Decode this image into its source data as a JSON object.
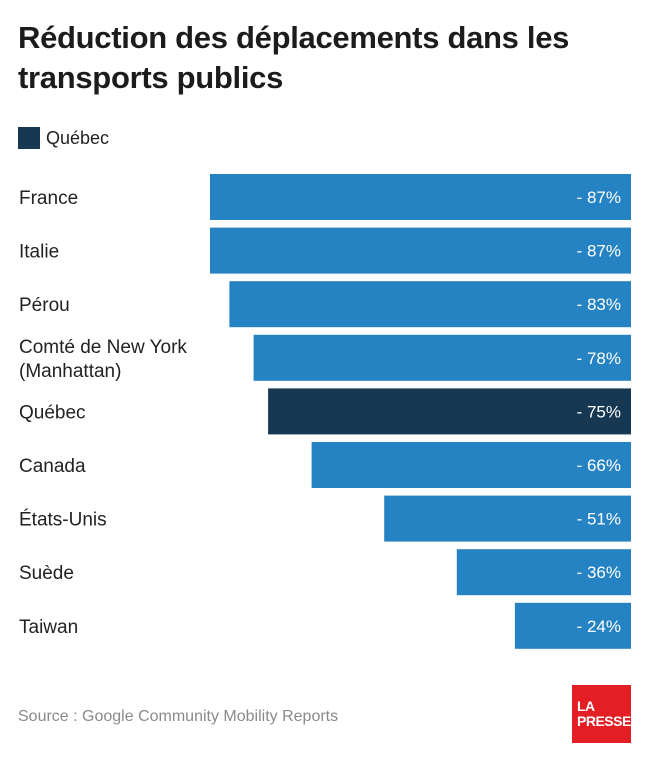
{
  "title": "Réduction des déplacements dans les transports publics",
  "legend": {
    "label": "Québec",
    "color": "#163853"
  },
  "colors": {
    "default_bar": "#2582c3",
    "highlight_bar": "#163853"
  },
  "chart_data": {
    "type": "bar",
    "orientation": "horizontal",
    "categories": [
      "France",
      "Italie",
      "Pérou",
      "Comté de New York (Manhattan)",
      "Québec",
      "Canada",
      "États-Unis",
      "Suède",
      "Taiwan"
    ],
    "category_lines": [
      [
        "France"
      ],
      [
        "Italie"
      ],
      [
        "Pérou"
      ],
      [
        "Comté de New York",
        "(Manhattan)"
      ],
      [
        "Québec"
      ],
      [
        "Canada"
      ],
      [
        "États-Unis"
      ],
      [
        "Suède"
      ],
      [
        "Taiwan"
      ]
    ],
    "values": [
      -87,
      -87,
      -83,
      -78,
      -75,
      -66,
      -51,
      -36,
      -24
    ],
    "value_labels": [
      "- 87%",
      "- 87%",
      "- 83%",
      "- 78%",
      "- 75%",
      "- 66%",
      "- 51%",
      "- 36%",
      "- 24%"
    ],
    "highlight": "Québec",
    "xlabel": "",
    "ylabel": "",
    "grid": false
  },
  "source": "Source : Google Community Mobility Reports",
  "logo": {
    "line1": "LA",
    "line2": "PRESSE",
    "color": "#e31e24"
  }
}
